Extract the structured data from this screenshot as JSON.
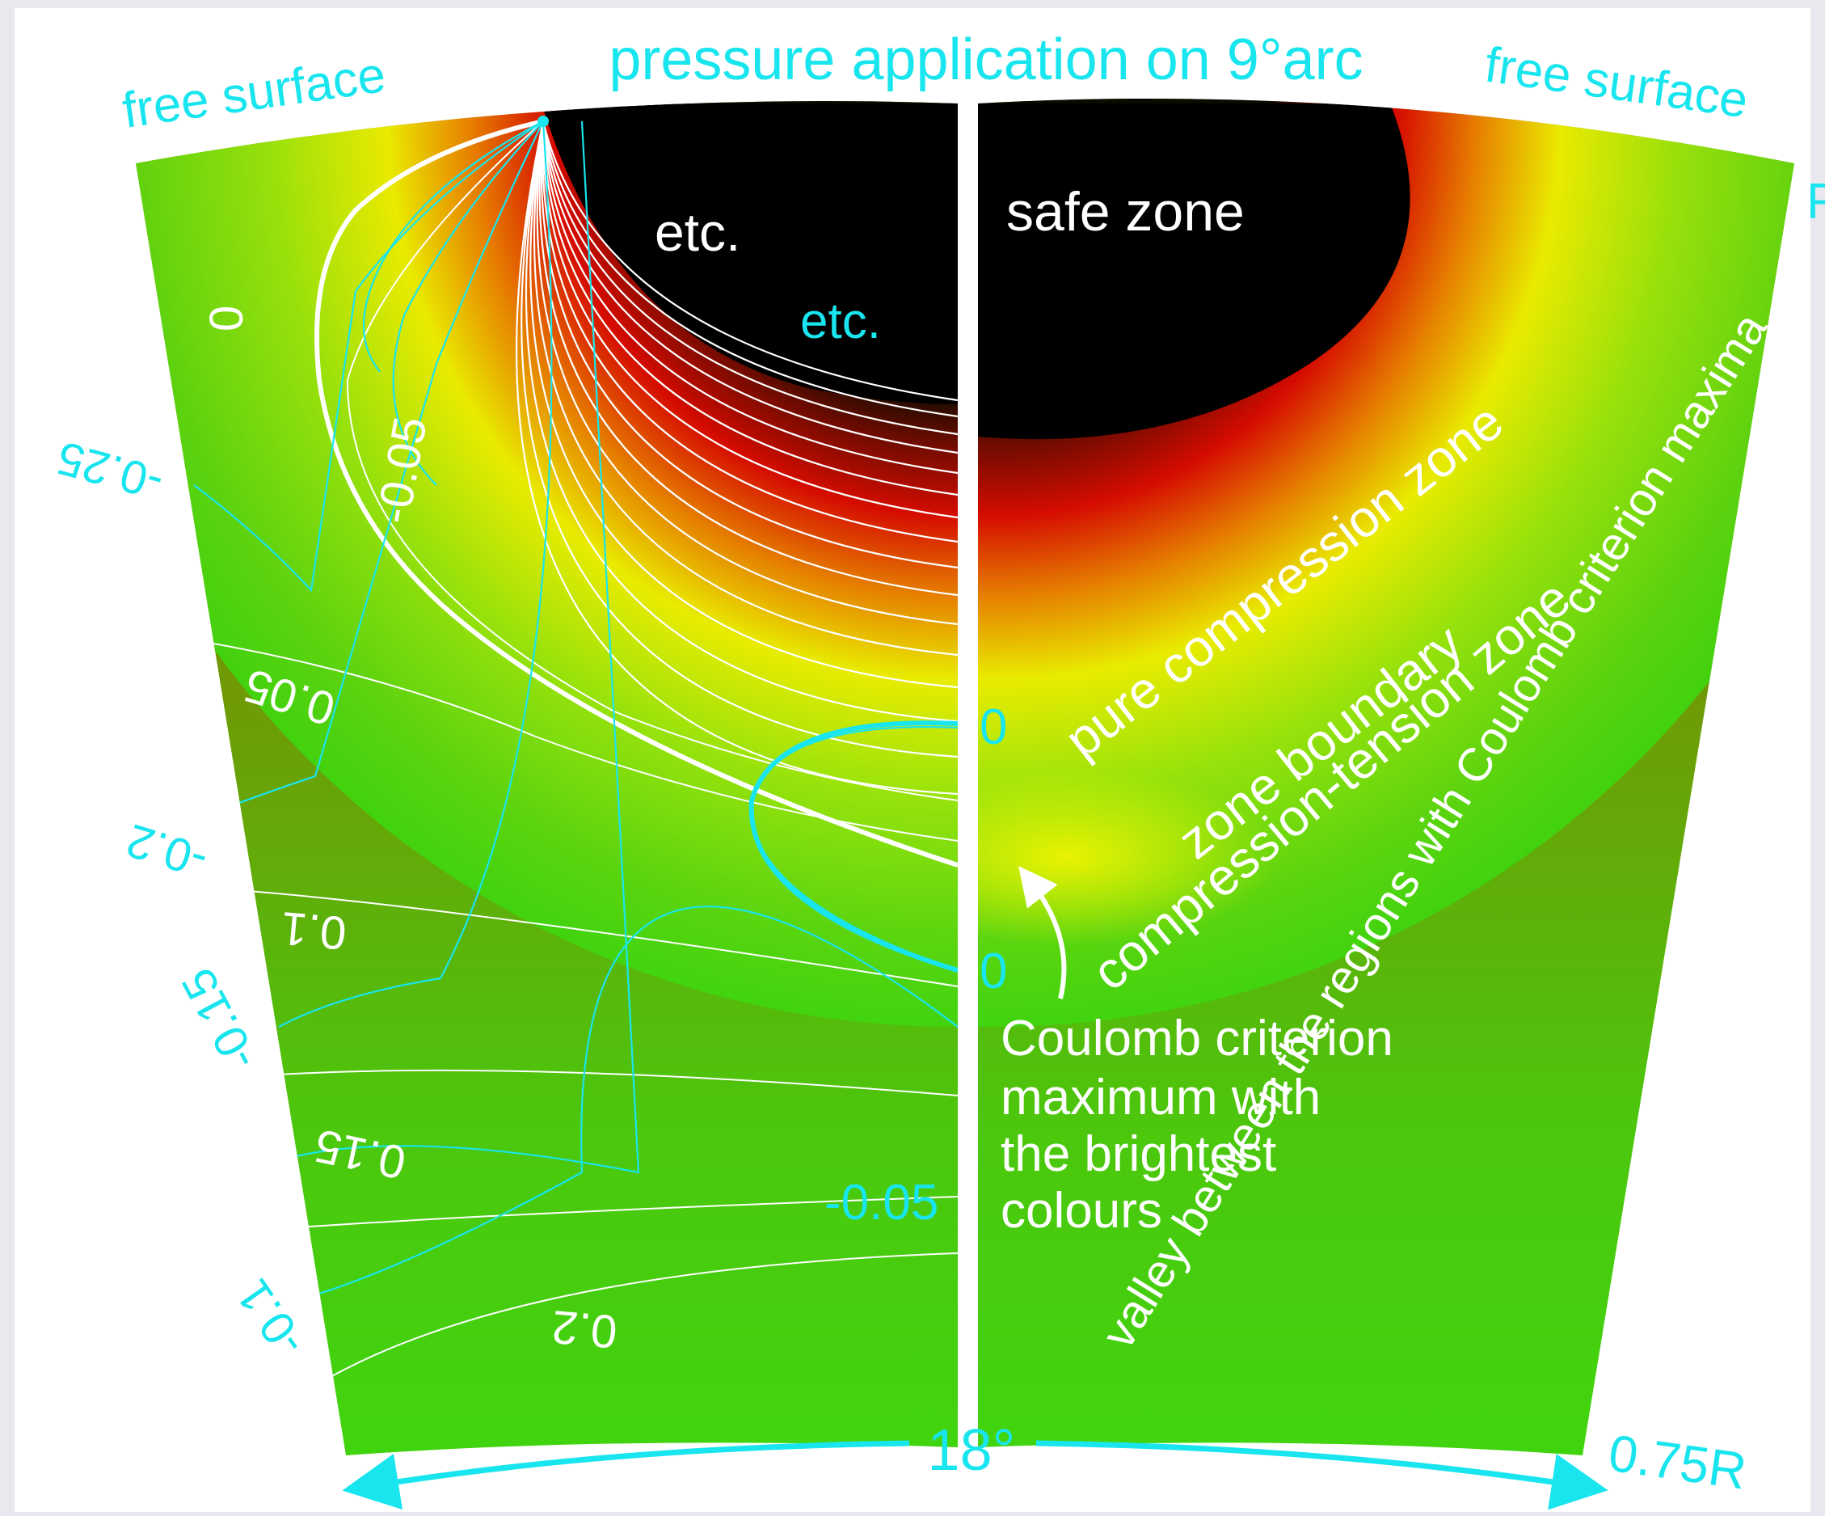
{
  "header": {
    "pressure_label": "pressure application on 9°arc",
    "free_surface_left": "free surface",
    "free_surface_right": "free surface",
    "edge_letter": "F"
  },
  "left_panel": {
    "etc_white": "etc.",
    "etc_cyan": "etc.",
    "white_contour_labels": [
      "0",
      "-0.05",
      "0.05",
      "0.1",
      "0.15",
      "0.2"
    ],
    "cyan_contour_labels": [
      "-0.25",
      "-0.2",
      "-0.15",
      "-0.1",
      "-0.05"
    ]
  },
  "right_panel": {
    "safe_zone": "safe zone",
    "zero_upper": "0",
    "zero_lower": "0",
    "pure_compression": "pure compression zone",
    "zone_boundary": "zone boundary",
    "compression_tension": "compression-tension zone",
    "coulomb_line1": "Coulomb criterion",
    "coulomb_line2": "maximum with",
    "coulomb_line3": "the brightest",
    "coulomb_line4": "colours",
    "valley": "valley between the regions with Coulomb criterion maxima"
  },
  "footer": {
    "angle": "18°",
    "radius": "0.75R"
  },
  "colors": {
    "cyan": "#19E5EE",
    "olive": "#7F7B00",
    "green": "#3FD60F",
    "red": "#E00000",
    "yellow": "#F5F500",
    "black": "#000000"
  }
}
